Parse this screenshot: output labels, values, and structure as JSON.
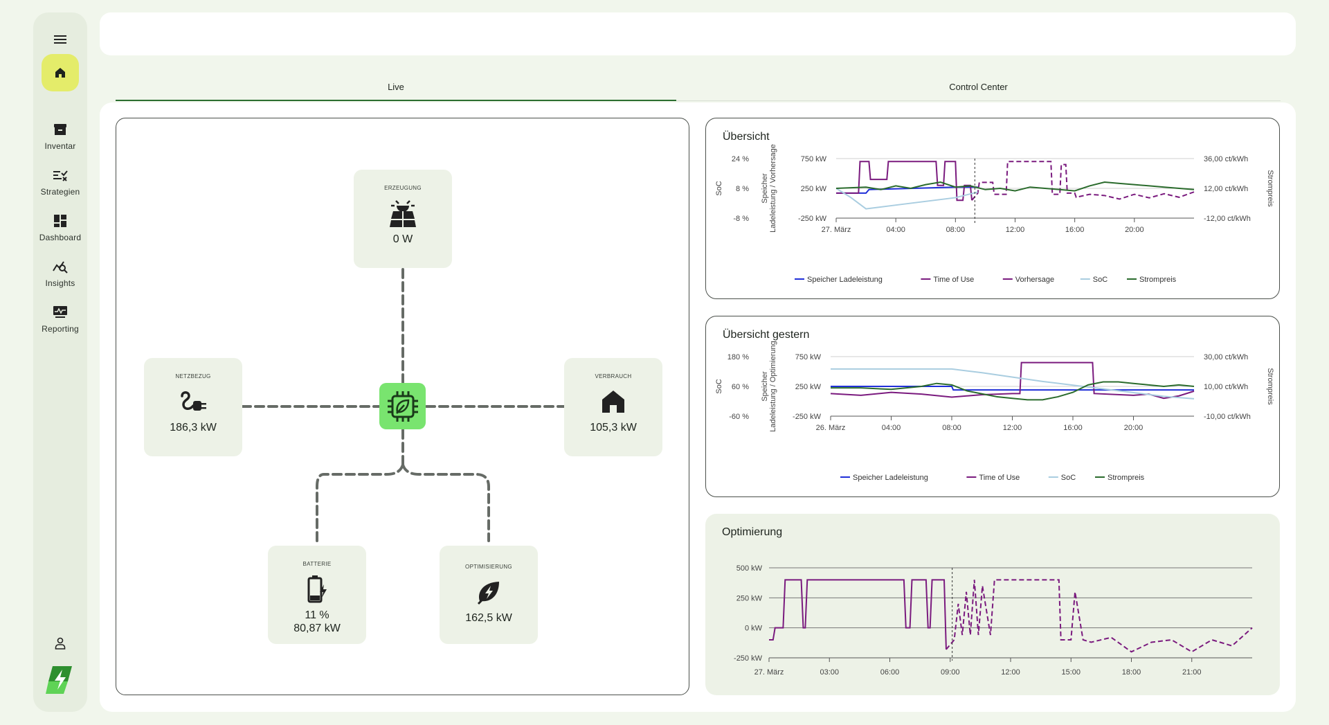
{
  "sidebar": {
    "items": [
      {
        "label": "Inventar",
        "icon": "archive-icon"
      },
      {
        "label": "Strategien",
        "icon": "strategy-list-icon"
      },
      {
        "label": "Dashboard",
        "icon": "dashboard-grid-icon"
      },
      {
        "label": "Insights",
        "icon": "insights-chart-icon"
      },
      {
        "label": "Reporting",
        "icon": "reporting-monitor-icon"
      }
    ],
    "active": "home-icon"
  },
  "tabs": [
    {
      "label": "Live",
      "active": true
    },
    {
      "label": "Control Center",
      "active": false
    }
  ],
  "flow": {
    "erzeugung": {
      "title": "ERZEUGUNG",
      "value": "0 W",
      "icon": "solar-panel-icon"
    },
    "netzbezug": {
      "title": "NETZBEZUG",
      "value": "186,3 kW",
      "icon": "grid-plug-icon"
    },
    "verbrauch": {
      "title": "VERBRAUCH",
      "value": "105,3 kW",
      "icon": "house-icon"
    },
    "batterie": {
      "title": "BATTERIE",
      "value1": "11 %",
      "value2": "80,87 kW",
      "icon": "battery-charging-icon"
    },
    "optimisierung": {
      "title": "OPTIMISIERUNG",
      "value": "162,5 kW",
      "icon": "lightning-leaf-icon"
    },
    "hub_icon": "controller-chip-icon"
  },
  "colors": {
    "accent": "#79e46f",
    "purple": "#7a1a7e",
    "green": "#2a6b2c",
    "blue": "#1f2ed8",
    "lightblue": "#a9cde0"
  },
  "chart_data": [
    {
      "type": "line",
      "title": "Übersicht",
      "left_axis_title": "SoC",
      "left_axis_ticks": [
        "24 %",
        "8 %",
        "-8 %"
      ],
      "mid_axis_title": "Speicher Ladeleistung / Vorhersage",
      "mid_axis_ticks": [
        "750 kW",
        "250 kW",
        "-250 kW"
      ],
      "right_axis_title": "Strompreis",
      "right_axis_ticks": [
        "36,00 ct/kWh",
        "12,00 ct/kWh",
        "-12,00 ct/kWh"
      ],
      "x_ticks": [
        "27. März",
        "04:00",
        "08:00",
        "12:00",
        "16:00",
        "20:00"
      ],
      "legend": [
        "Speicher Ladeleistung",
        "Time of Use",
        "Vorhersage",
        "SoC",
        "Strompreis"
      ],
      "series": [
        {
          "name": "Speicher Ladeleistung",
          "color": "#1f2ed8",
          "x": [
            0,
            2,
            2.2,
            8,
            9.5
          ],
          "values": [
            -80,
            -80,
            -20,
            20,
            20
          ]
        },
        {
          "name": "Time of Use",
          "color": "#7a1a7e",
          "x": [
            0,
            1.5,
            1.6,
            2.2,
            2.3,
            3.4,
            3.5,
            3.6,
            3.7,
            6.7,
            6.8,
            7.2,
            7.3,
            7.6,
            7.7,
            8.0,
            8.1,
            8.5,
            8.6,
            9.0,
            9.1
          ],
          "values": [
            -80,
            -80,
            450,
            450,
            150,
            150,
            450,
            450,
            450,
            450,
            50,
            50,
            450,
            450,
            450,
            450,
            -200,
            -200,
            50,
            50,
            -200
          ]
        },
        {
          "name": "Vorhersage",
          "color": "#7a1a7e",
          "dashed": true,
          "x": [
            9.1,
            9.5,
            9.6,
            10.5,
            10.6,
            11.4,
            11.5,
            14.4,
            14.5,
            15.0,
            15.1,
            15.4,
            15.5,
            16.0,
            16.1,
            17,
            18,
            19,
            20,
            21,
            22,
            23,
            24
          ],
          "values": [
            -200,
            -80,
            100,
            100,
            -100,
            -100,
            450,
            450,
            -100,
            -100,
            400,
            400,
            -80,
            -80,
            -150,
            -100,
            -120,
            -180,
            -100,
            -160,
            -90,
            -150,
            -60
          ]
        },
        {
          "name": "SoC",
          "color": "#a9cde0",
          "x": [
            0,
            1,
            2,
            4,
            6,
            8,
            9.5
          ],
          "values": [
            8,
            3,
            -3,
            -1,
            1,
            3,
            6
          ]
        },
        {
          "name": "Strompreis",
          "color": "#2a6b2c",
          "x": [
            0,
            2,
            3,
            4,
            5,
            6,
            7,
            8,
            9,
            10,
            11,
            12,
            13,
            14,
            15,
            16,
            17,
            18,
            19,
            20,
            21,
            22,
            23,
            24
          ],
          "values": [
            12,
            13,
            11,
            14,
            12,
            15,
            17,
            13,
            14,
            11,
            12,
            10,
            13,
            12,
            11,
            10,
            14,
            17,
            16,
            15,
            14,
            13,
            12,
            11
          ]
        }
      ]
    },
    {
      "type": "line",
      "title": "Übersicht gestern",
      "left_axis_title": "SoC",
      "left_axis_ticks": [
        "180 %",
        "60 %",
        "-60 %"
      ],
      "mid_axis_title": "Speicher Ladeleistung / Optimierung",
      "mid_axis_ticks": [
        "750 kW",
        "250 kW",
        "-250 kW"
      ],
      "right_axis_title": "Strompreis",
      "right_axis_ticks": [
        "30,00 ct/kWh",
        "10,00 ct/kWh",
        "-10,00 ct/kWh"
      ],
      "x_ticks": [
        "26. März",
        "04:00",
        "08:00",
        "12:00",
        "16:00",
        "20:00"
      ],
      "legend": [
        "Speicher Ladeleistung",
        "Time of Use",
        "SoC",
        "Strompreis"
      ],
      "series": [
        {
          "name": "Speicher Ladeleistung",
          "color": "#1f2ed8",
          "x": [
            0,
            8,
            8.1,
            24
          ],
          "values": [
            0,
            0,
            -60,
            -60
          ]
        },
        {
          "name": "Time of Use",
          "color": "#7a1a7e",
          "x": [
            0,
            2,
            4,
            6,
            8,
            10,
            12,
            12.5,
            12.6,
            13.0,
            13.1,
            17.3,
            17.4,
            20,
            21,
            22,
            23,
            24
          ],
          "values": [
            -120,
            -150,
            -100,
            -130,
            -180,
            -140,
            -120,
            -120,
            400,
            400,
            400,
            400,
            -120,
            -150,
            -130,
            -200,
            -160,
            -80
          ]
        },
        {
          "name": "SoC",
          "color": "#a9cde0",
          "x": [
            0,
            8,
            10,
            14,
            18,
            22,
            24
          ],
          "values": [
            130,
            130,
            115,
            80,
            50,
            20,
            10
          ]
        },
        {
          "name": "Strompreis",
          "color": "#2a6b2c",
          "x": [
            0,
            2,
            4,
            6,
            7,
            8,
            9,
            10,
            11,
            12,
            13,
            14,
            15,
            16,
            17,
            18,
            19,
            20,
            21,
            22,
            23,
            24
          ],
          "values": [
            9,
            9,
            8,
            10,
            12,
            11,
            7,
            5,
            3,
            2,
            1,
            1,
            3,
            6,
            11,
            13,
            13,
            12,
            11,
            10,
            11,
            10
          ]
        }
      ]
    },
    {
      "type": "line",
      "title": "Optimierung",
      "y_ticks": [
        "500 kW",
        "250 kW",
        "0 kW",
        "-250 kW"
      ],
      "x_ticks": [
        "27. März",
        "03:00",
        "06:00",
        "09:00",
        "12:00",
        "15:00",
        "18:00",
        "21:00"
      ],
      "series": [
        {
          "name": "",
          "color": "#7a1a7e",
          "x": [
            0,
            0.2,
            0.3,
            0.7,
            0.8,
            1.6,
            1.7,
            1.8,
            1.9,
            2.3,
            2.4,
            6.7,
            6.8,
            7.0,
            7.1,
            7.8,
            7.9,
            8.0,
            8.1,
            8.7,
            8.8
          ],
          "values": [
            -100,
            -100,
            0,
            0,
            400,
            400,
            0,
            0,
            400,
            400,
            400,
            400,
            0,
            0,
            400,
            400,
            0,
            0,
            400,
            400,
            -180
          ]
        },
        {
          "name": "",
          "color": "#7a1a7e",
          "dashed": true,
          "x": [
            8.8,
            9.2,
            9.4,
            9.6,
            9.8,
            10,
            10.2,
            10.4,
            10.6,
            11,
            11.2,
            11.4,
            14.4,
            14.5,
            15.0,
            15.2,
            15.6,
            16,
            17,
            18,
            19,
            20,
            21,
            22,
            23,
            24
          ],
          "values": [
            -180,
            -100,
            200,
            -60,
            300,
            -60,
            400,
            -60,
            350,
            -60,
            400,
            400,
            400,
            -100,
            -100,
            300,
            -100,
            -120,
            -80,
            -200,
            -120,
            -100,
            -200,
            -100,
            -150,
            0
          ]
        }
      ]
    }
  ]
}
